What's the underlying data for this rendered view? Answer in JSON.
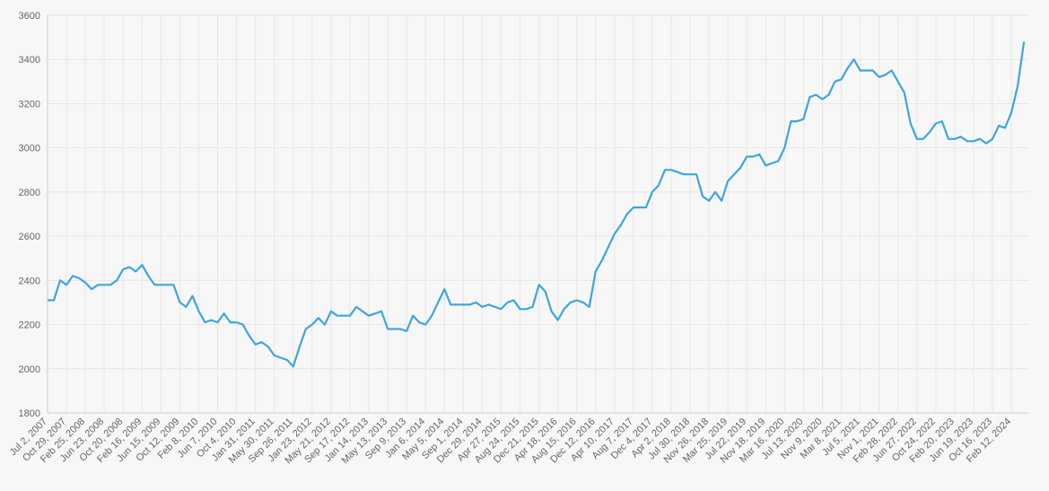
{
  "chart_data": {
    "type": "line",
    "categories": [
      "Jul 2, 2007",
      null,
      null,
      "Oct 29, 2007",
      null,
      null,
      "Feb 25, 2008",
      null,
      null,
      "Jun 23, 2008",
      null,
      null,
      "Oct 20, 2008",
      null,
      null,
      "Feb 16, 2009",
      null,
      null,
      "Jun 15, 2009",
      null,
      null,
      "Oct 12, 2009",
      null,
      null,
      "Feb 8, 2010",
      null,
      null,
      "Jun 7, 2010",
      null,
      null,
      "Oct 4, 2010",
      null,
      null,
      "Jan 31, 2011",
      null,
      null,
      "May 30, 2011",
      null,
      null,
      "Sep 26, 2011",
      null,
      null,
      "Jan 23, 2012",
      null,
      null,
      "May 21, 2012",
      null,
      null,
      "Sep 17, 2012",
      null,
      null,
      "Jan 14, 2013",
      null,
      null,
      "May 13, 2013",
      null,
      null,
      "Sep 9, 2013",
      null,
      null,
      "Jan 6, 2014",
      null,
      null,
      "May 5, 2014",
      null,
      null,
      "Sep 1, 2014",
      null,
      null,
      "Dec 29, 2014",
      null,
      null,
      "Apr 27, 2015",
      null,
      null,
      "Aug 24, 2015",
      null,
      null,
      "Dec 21, 2015",
      null,
      null,
      "Apr 18, 2016",
      null,
      null,
      "Aug 15, 2016",
      null,
      null,
      "Dec 12, 2016",
      null,
      null,
      "Apr 10, 2017",
      null,
      null,
      "Aug 7, 2017",
      null,
      null,
      "Dec 4, 2017",
      null,
      null,
      "Apr 2, 2018",
      null,
      null,
      "Jul 30, 2018",
      null,
      null,
      "Nov 26, 2018",
      null,
      null,
      "Mar 25, 2019",
      null,
      null,
      "Jul 22, 2019",
      null,
      null,
      "Nov 18, 2019",
      null,
      null,
      "Mar 16, 2020",
      null,
      null,
      "Jul 13, 2020",
      null,
      null,
      "Nov 9, 2020",
      null,
      null,
      "Mar 8, 2021",
      null,
      null,
      "Jul 5, 2021",
      null,
      null,
      "Nov 1, 2021",
      null,
      null,
      "Feb 28, 2022",
      null,
      null,
      "Jun 27, 2022",
      null,
      null,
      "Oct 24, 2022",
      null,
      null,
      "Feb 20, 2023",
      null,
      null,
      "Jun 19, 2023",
      null,
      null,
      "Oct 16, 2023",
      null,
      null,
      "Feb 12, 2024",
      null,
      null
    ],
    "values": [
      2310,
      2310,
      2400,
      2380,
      2420,
      2410,
      2390,
      2360,
      2380,
      2380,
      2380,
      2400,
      2450,
      2460,
      2440,
      2470,
      2420,
      2380,
      2380,
      2380,
      2380,
      2300,
      2280,
      2330,
      2260,
      2210,
      2220,
      2210,
      2250,
      2210,
      2210,
      2200,
      2150,
      2110,
      2120,
      2100,
      2060,
      2050,
      2040,
      2010,
      2100,
      2180,
      2200,
      2230,
      2200,
      2260,
      2240,
      2240,
      2240,
      2280,
      2260,
      2240,
      2250,
      2260,
      2180,
      2180,
      2180,
      2170,
      2240,
      2210,
      2200,
      2240,
      2300,
      2360,
      2290,
      2290,
      2290,
      2290,
      2300,
      2280,
      2290,
      2280,
      2270,
      2300,
      2310,
      2270,
      2270,
      2280,
      2380,
      2350,
      2260,
      2220,
      2270,
      2300,
      2310,
      2300,
      2280,
      2440,
      2490,
      2550,
      2610,
      2650,
      2700,
      2730,
      2730,
      2730,
      2800,
      2830,
      2900,
      2900,
      2890,
      2880,
      2880,
      2880,
      2780,
      2760,
      2800,
      2760,
      2850,
      2880,
      2910,
      2960,
      2960,
      2970,
      2920,
      2930,
      2940,
      3000,
      3120,
      3120,
      3130,
      3230,
      3240,
      3220,
      3240,
      3300,
      3310,
      3360,
      3400,
      3350,
      3350,
      3350,
      3320,
      3330,
      3350,
      3300,
      3250,
      3110,
      3040,
      3040,
      3070,
      3110,
      3120,
      3040,
      3040,
      3050,
      3030,
      3030,
      3040,
      3020,
      3040,
      3100,
      3090,
      3160,
      3280,
      3480
    ],
    "color": "#3ea5e0",
    "ylim": [
      1800,
      3600
    ],
    "yticks": [
      1800,
      2000,
      2200,
      2400,
      2600,
      2800,
      3000,
      3200,
      3400,
      3600
    ],
    "grid": true
  }
}
